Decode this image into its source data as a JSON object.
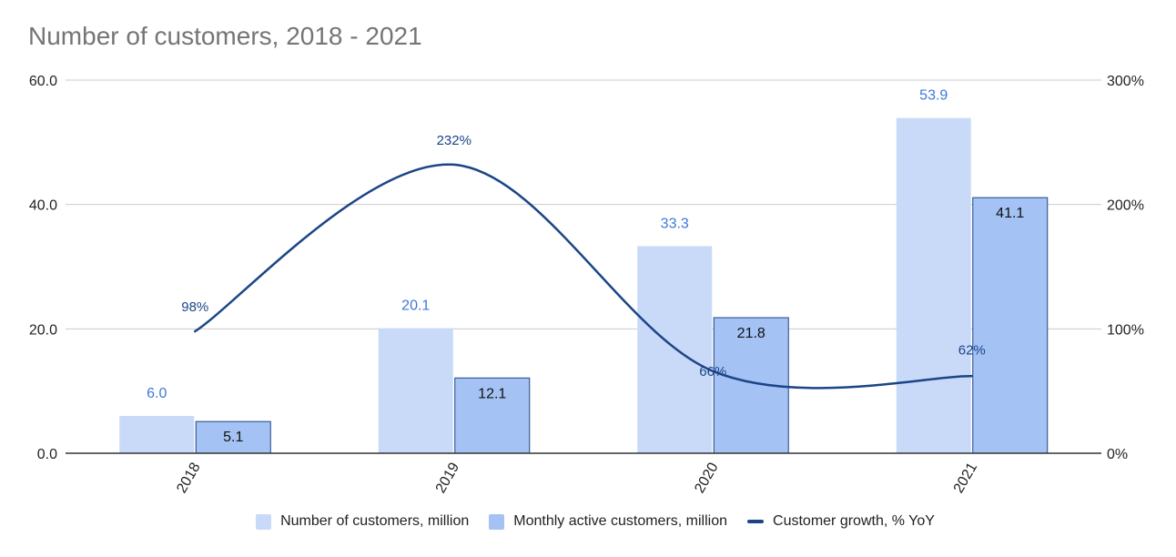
{
  "chart_data": {
    "type": "bar",
    "title": "Number of customers, 2018 - 2021",
    "categories": [
      "2018",
      "2019",
      "2020",
      "2021"
    ],
    "ylim_left": [
      0,
      60
    ],
    "ylim_right": [
      0,
      300
    ],
    "left_ticks": [
      "0.0",
      "20.0",
      "40.0",
      "60.0"
    ],
    "right_ticks": [
      "0%",
      "100%",
      "200%",
      "300%"
    ],
    "grid": true,
    "legend_position": "bottom",
    "series": [
      {
        "name": "Number of customers, million",
        "kind": "bar",
        "axis": "left",
        "color": "#c9daf8",
        "label_color": "#3d78d8",
        "values": [
          6.0,
          20.1,
          33.3,
          53.9
        ],
        "labels": [
          "6.0",
          "20.1",
          "33.3",
          "53.9"
        ]
      },
      {
        "name": "Monthly active customers, million",
        "kind": "bar",
        "axis": "left",
        "color": "#a4c2f4",
        "border": "#1c4587",
        "label_color": "#111111",
        "values": [
          5.1,
          12.1,
          21.8,
          41.1
        ],
        "labels": [
          "5.1",
          "12.1",
          "21.8",
          "41.1"
        ]
      },
      {
        "name": "Customer growth, % YoY",
        "kind": "line",
        "axis": "right",
        "color": "#1c4587",
        "values": [
          98,
          232,
          66,
          62
        ],
        "labels": [
          "98%",
          "232%",
          "66%",
          "62%"
        ]
      }
    ]
  }
}
